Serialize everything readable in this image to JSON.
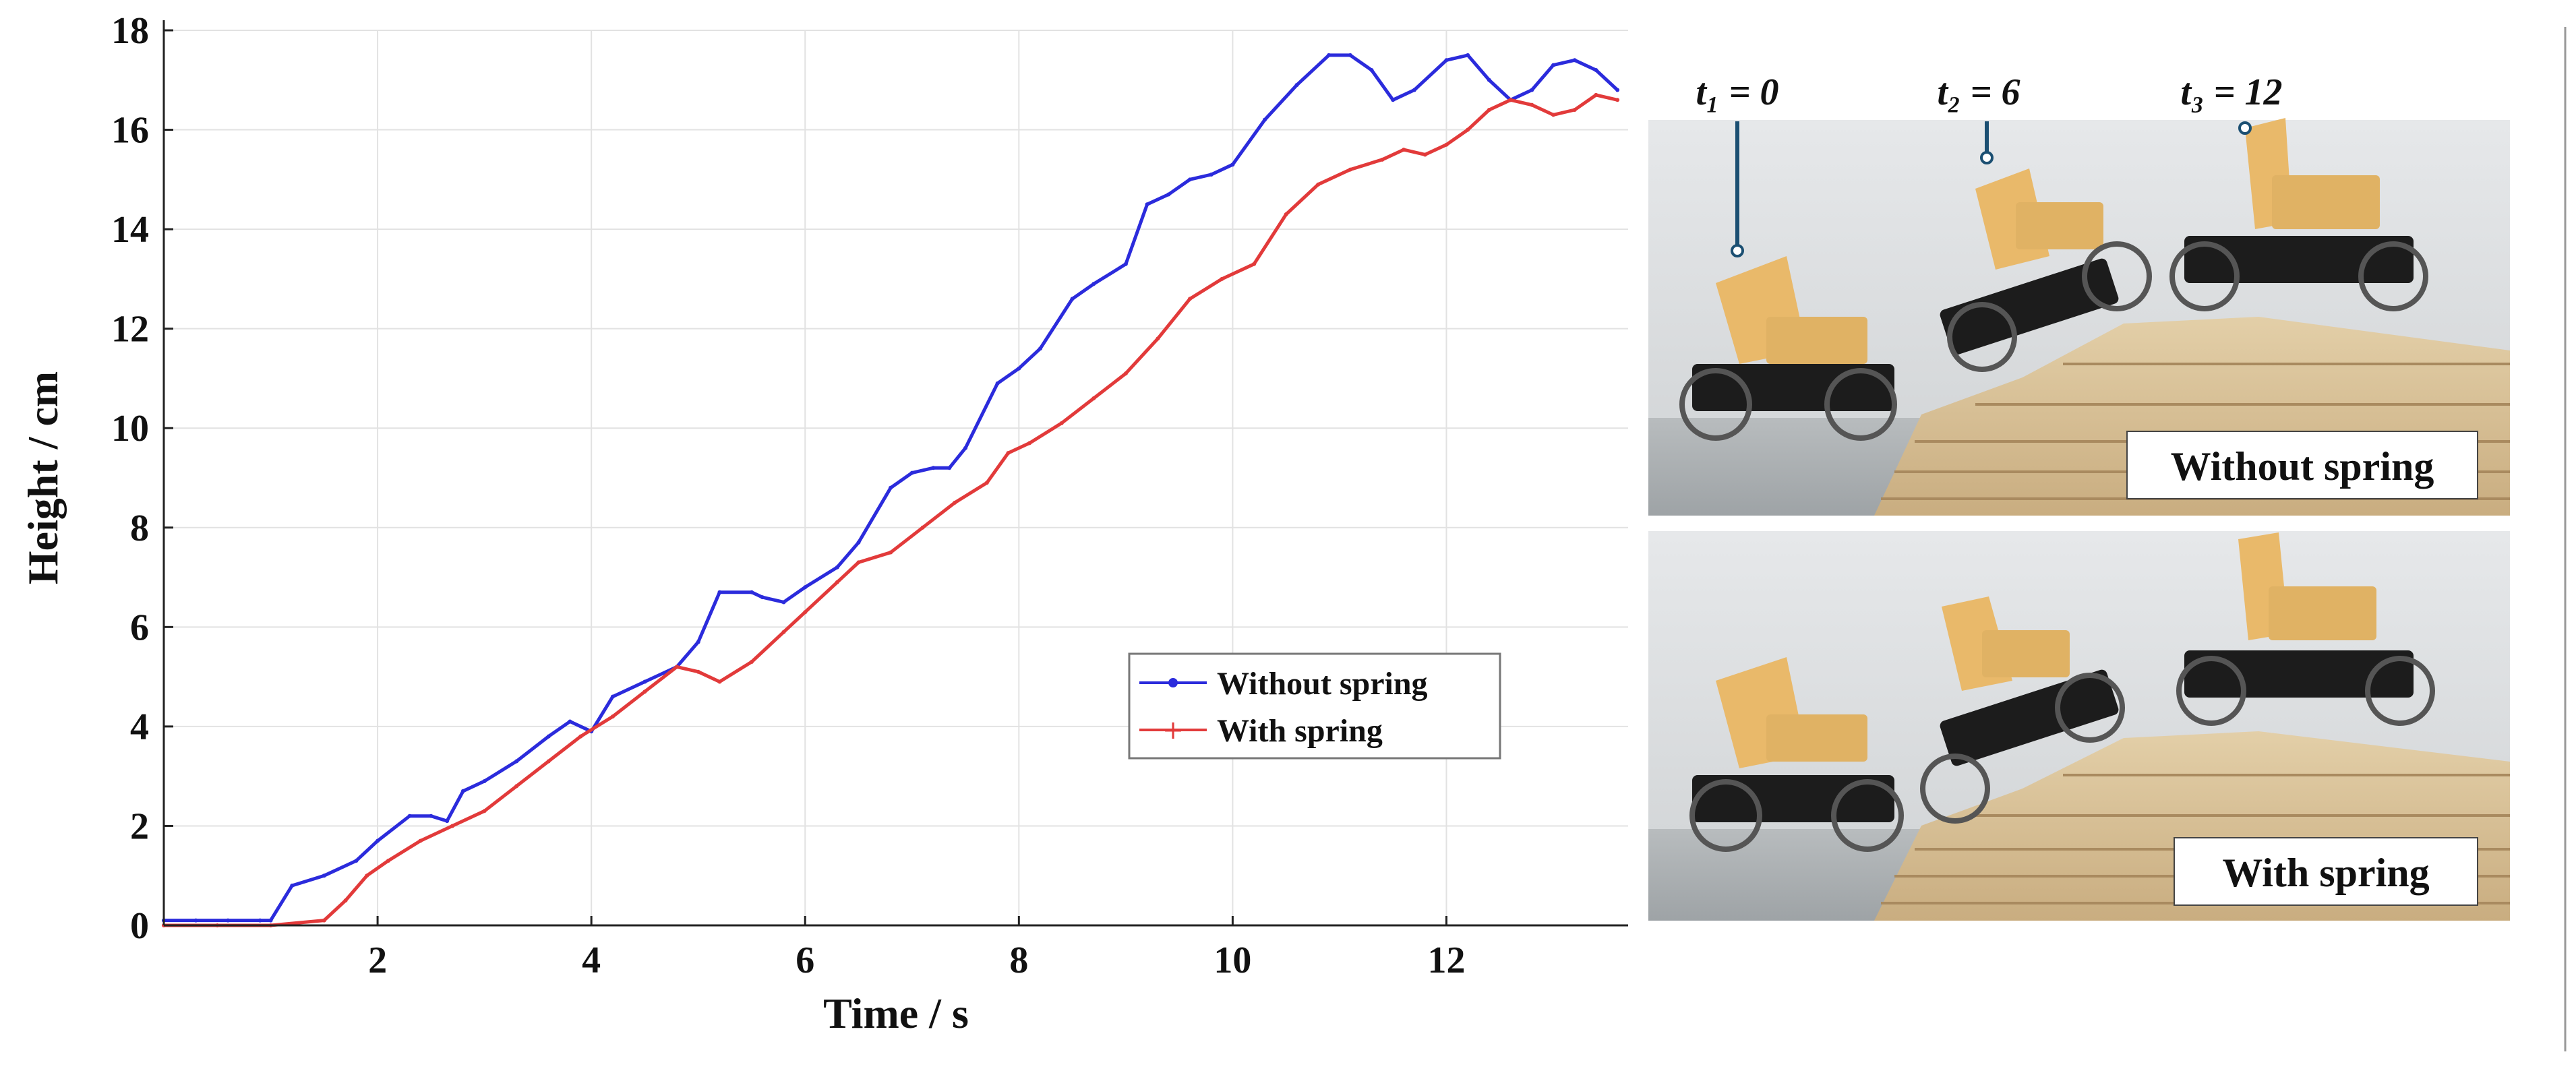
{
  "chart_data": {
    "type": "line",
    "title": "",
    "xlabel": "Time / s",
    "ylabel": "Height / cm",
    "xlim": [
      0,
      13.7
    ],
    "ylim": [
      0,
      18
    ],
    "xticks": [
      2,
      4,
      6,
      8,
      10,
      12
    ],
    "yticks": [
      0,
      2,
      4,
      6,
      8,
      10,
      12,
      14,
      16,
      18
    ],
    "grid": true,
    "legend_position": "lower-right-of-center",
    "series": [
      {
        "name": "Without spring",
        "color": "#2b2bdc",
        "x": [
          0,
          0.3,
          0.6,
          0.9,
          1.0,
          1.2,
          1.5,
          1.8,
          2.0,
          2.3,
          2.5,
          2.65,
          2.8,
          3.0,
          3.3,
          3.6,
          3.8,
          4.0,
          4.2,
          4.5,
          4.8,
          5.0,
          5.2,
          5.5,
          5.6,
          5.8,
          6.0,
          6.3,
          6.5,
          6.8,
          7.0,
          7.2,
          7.35,
          7.5,
          7.8,
          8.0,
          8.2,
          8.5,
          8.7,
          9.0,
          9.2,
          9.4,
          9.6,
          9.8,
          10.0,
          10.3,
          10.6,
          10.9,
          11.1,
          11.3,
          11.5,
          11.7,
          12.0,
          12.2,
          12.4,
          12.6,
          12.8,
          13.0,
          13.2,
          13.4,
          13.6
        ],
        "y": [
          0.1,
          0.1,
          0.1,
          0.1,
          0.1,
          0.8,
          1.0,
          1.3,
          1.7,
          2.2,
          2.2,
          2.1,
          2.7,
          2.9,
          3.3,
          3.8,
          4.1,
          3.9,
          4.6,
          4.9,
          5.2,
          5.7,
          6.7,
          6.7,
          6.6,
          6.5,
          6.8,
          7.2,
          7.7,
          8.8,
          9.1,
          9.2,
          9.2,
          9.6,
          10.9,
          11.2,
          11.6,
          12.6,
          12.9,
          13.3,
          14.5,
          14.7,
          15.0,
          15.1,
          15.3,
          16.2,
          16.9,
          17.5,
          17.5,
          17.2,
          16.6,
          16.8,
          17.4,
          17.5,
          17.0,
          16.6,
          16.8,
          17.3,
          17.4,
          17.2,
          16.8
        ]
      },
      {
        "name": "With spring",
        "color": "#e23a3a",
        "x": [
          0,
          0.5,
          1.0,
          1.5,
          1.7,
          1.9,
          2.1,
          2.4,
          2.7,
          3.0,
          3.3,
          3.6,
          3.9,
          4.2,
          4.5,
          4.8,
          5.0,
          5.2,
          5.5,
          5.8,
          6.0,
          6.3,
          6.5,
          6.8,
          7.1,
          7.4,
          7.7,
          7.9,
          8.1,
          8.4,
          8.7,
          9.0,
          9.3,
          9.6,
          9.9,
          10.2,
          10.5,
          10.8,
          11.1,
          11.4,
          11.6,
          11.8,
          12.0,
          12.2,
          12.4,
          12.6,
          12.8,
          13.0,
          13.2,
          13.4,
          13.6
        ],
        "y": [
          0,
          0,
          0,
          0.1,
          0.5,
          1.0,
          1.3,
          1.7,
          2.0,
          2.3,
          2.8,
          3.3,
          3.8,
          4.2,
          4.7,
          5.2,
          5.1,
          4.9,
          5.3,
          5.9,
          6.3,
          6.9,
          7.3,
          7.5,
          8.0,
          8.5,
          8.9,
          9.5,
          9.7,
          10.1,
          10.6,
          11.1,
          11.8,
          12.6,
          13.0,
          13.3,
          14.3,
          14.9,
          15.2,
          15.4,
          15.6,
          15.5,
          15.7,
          16.0,
          16.4,
          16.6,
          16.5,
          16.3,
          16.4,
          16.7,
          16.6
        ]
      }
    ]
  },
  "photos": {
    "time_labels": [
      "t₁ = 0",
      "t₂ = 6",
      "t₃ = 12"
    ],
    "top_label": "Without spring",
    "bottom_label": "With spring"
  }
}
